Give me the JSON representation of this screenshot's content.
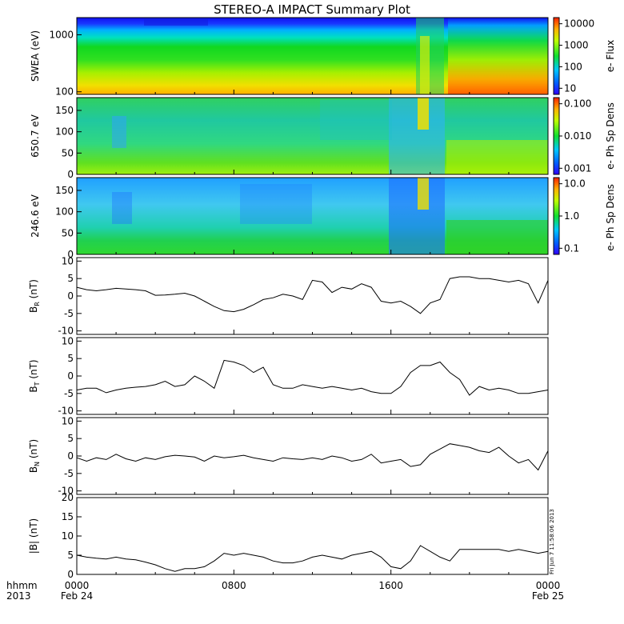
{
  "title": "STEREO-A IMPACT Summary Plot",
  "time_axis": {
    "corner_top": "hhmm",
    "corner_bottom": "2013",
    "ticks": [
      {
        "hour": 0,
        "top": "0000",
        "bottom": "Feb 24"
      },
      {
        "hour": 8,
        "top": "0800",
        "bottom": ""
      },
      {
        "hour": 16,
        "top": "1600",
        "bottom": ""
      },
      {
        "hour": 24,
        "top": "0000",
        "bottom": "Feb 25"
      }
    ]
  },
  "timestamp": "Fri Jun  7 11:58:06 2013",
  "spectrograms": [
    {
      "ylabel": "SWEA (eV)",
      "yscale": "log",
      "ylim": [
        90,
        2000
      ],
      "yticks": [
        "100",
        "1000"
      ],
      "colorbar_label": "e- Flux",
      "colorbar_ticks": [
        "10",
        "100",
        "1000",
        "10000"
      ],
      "colorbar_top_color": "#ff2000",
      "colorbar_bottom_color": "#3000ff"
    },
    {
      "ylabel": "650.7 eV",
      "yscale": "linear",
      "ylim": [
        0,
        180
      ],
      "yticks": [
        "0",
        "50",
        "100",
        "150"
      ],
      "colorbar_label": "e- Ph Sp Dens",
      "colorbar_ticks": [
        "0.001",
        "0.010",
        "0.100"
      ]
    },
    {
      "ylabel": "246.6 eV",
      "yscale": "linear",
      "ylim": [
        0,
        180
      ],
      "yticks": [
        "0",
        "50",
        "100",
        "150"
      ],
      "colorbar_label": "e- Ph Sp Dens",
      "colorbar_ticks": [
        "0.1",
        "1.0",
        "10.0"
      ]
    }
  ],
  "chart_data": [
    {
      "type": "line",
      "ylabel": "B_R (nT)",
      "ylim": [
        -11,
        11
      ],
      "yticks": [
        "-10",
        "-5",
        "0",
        "5",
        "10"
      ],
      "x_unit": "hours since 2013-02-24 00:00",
      "x": [
        0,
        0.5,
        1,
        1.5,
        2,
        2.5,
        3,
        3.5,
        4,
        4.5,
        5,
        5.5,
        6,
        6.5,
        7,
        7.5,
        8,
        8.5,
        9,
        9.5,
        10,
        10.5,
        11,
        11.5,
        12,
        12.5,
        13,
        13.5,
        14,
        14.5,
        15,
        15.5,
        16,
        16.5,
        17,
        17.5,
        18,
        18.5,
        19,
        19.5,
        20,
        20.5,
        21,
        21.5,
        22,
        22.5,
        23,
        23.5,
        24
      ],
      "y": [
        2.5,
        1.8,
        1.5,
        1.8,
        2.2,
        2.0,
        1.8,
        1.5,
        0.2,
        0.3,
        0.5,
        0.8,
        0.0,
        -1.5,
        -3.0,
        -4.2,
        -4.5,
        -3.8,
        -2.5,
        -1.0,
        -0.5,
        0.5,
        0.0,
        -1.0,
        4.5,
        4.0,
        1.0,
        2.5,
        2.0,
        3.5,
        2.5,
        -1.5,
        -2.0,
        -1.5,
        -3.0,
        -5.0,
        -2.0,
        -1.0,
        5.0,
        5.5,
        5.5,
        5.0,
        5.0,
        4.5,
        4.0,
        4.5,
        3.5,
        -2.0,
        4.5
      ]
    },
    {
      "type": "line",
      "ylabel": "B_T (nT)",
      "ylim": [
        -11,
        11
      ],
      "yticks": [
        "-10",
        "-5",
        "0",
        "5",
        "10"
      ],
      "x_unit": "hours since 2013-02-24 00:00",
      "x": [
        0,
        0.5,
        1,
        1.5,
        2,
        2.5,
        3,
        3.5,
        4,
        4.5,
        5,
        5.5,
        6,
        6.5,
        7,
        7.5,
        8,
        8.5,
        9,
        9.5,
        10,
        10.5,
        11,
        11.5,
        12,
        12.5,
        13,
        13.5,
        14,
        14.5,
        15,
        15.5,
        16,
        16.5,
        17,
        17.5,
        18,
        18.5,
        19,
        19.5,
        20,
        20.5,
        21,
        21.5,
        22,
        22.5,
        23,
        23.5,
        24
      ],
      "y": [
        -4.0,
        -3.5,
        -3.5,
        -4.8,
        -4.0,
        -3.5,
        -3.2,
        -3.0,
        -2.5,
        -1.5,
        -3.0,
        -2.5,
        0.0,
        -1.5,
        -3.5,
        4.5,
        4.0,
        3.0,
        1.0,
        2.5,
        -2.5,
        -3.5,
        -3.5,
        -2.5,
        -3.0,
        -3.5,
        -3.0,
        -3.5,
        -4.0,
        -3.5,
        -4.5,
        -5.0,
        -5.0,
        -3.0,
        1.0,
        3.0,
        3.0,
        4.0,
        1.0,
        -1.0,
        -5.5,
        -3.0,
        -4.0,
        -3.5,
        -4.0,
        -5.0,
        -5.0,
        -4.5,
        -4.0
      ]
    },
    {
      "type": "line",
      "ylabel": "B_N (nT)",
      "ylim": [
        -11,
        11
      ],
      "yticks": [
        "-10",
        "-5",
        "0",
        "5",
        "10"
      ],
      "x_unit": "hours since 2013-02-24 00:00",
      "x": [
        0,
        0.5,
        1,
        1.5,
        2,
        2.5,
        3,
        3.5,
        4,
        4.5,
        5,
        5.5,
        6,
        6.5,
        7,
        7.5,
        8,
        8.5,
        9,
        9.5,
        10,
        10.5,
        11,
        11.5,
        12,
        12.5,
        13,
        13.5,
        14,
        14.5,
        15,
        15.5,
        16,
        16.5,
        17,
        17.5,
        18,
        18.5,
        19,
        19.5,
        20,
        20.5,
        21,
        21.5,
        22,
        22.5,
        23,
        23.5,
        24
      ],
      "y": [
        -0.5,
        -1.5,
        -0.5,
        -1.0,
        0.5,
        -0.8,
        -1.5,
        -0.5,
        -1.0,
        -0.2,
        0.2,
        0.0,
        -0.3,
        -1.5,
        0.0,
        -0.5,
        -0.2,
        0.2,
        -0.5,
        -1.0,
        -1.5,
        -0.5,
        -0.8,
        -1.0,
        -0.5,
        -1.0,
        0.0,
        -0.5,
        -1.5,
        -1.0,
        0.5,
        -2.0,
        -1.5,
        -1.0,
        -3.0,
        -2.5,
        0.5,
        2.0,
        3.5,
        3.0,
        2.5,
        1.5,
        1.0,
        2.5,
        0.0,
        -2.0,
        -1.0,
        -4.0,
        1.5
      ]
    },
    {
      "type": "line",
      "ylabel": "|B| (nT)",
      "ylim": [
        0,
        20
      ],
      "yticks": [
        "0",
        "5",
        "10",
        "15",
        "20"
      ],
      "x_unit": "hours since 2013-02-24 00:00",
      "x": [
        0,
        0.5,
        1,
        1.5,
        2,
        2.5,
        3,
        3.5,
        4,
        4.5,
        5,
        5.5,
        6,
        6.5,
        7,
        7.5,
        8,
        8.5,
        9,
        9.5,
        10,
        10.5,
        11,
        11.5,
        12,
        12.5,
        13,
        13.5,
        14,
        14.5,
        15,
        15.5,
        16,
        16.5,
        17,
        17.5,
        18,
        18.5,
        19,
        19.5,
        20,
        20.5,
        21,
        21.5,
        22,
        22.5,
        23,
        23.5,
        24
      ],
      "y": [
        5.0,
        4.5,
        4.2,
        4.0,
        4.5,
        4.0,
        3.8,
        3.2,
        2.5,
        1.5,
        0.8,
        1.5,
        1.5,
        2.0,
        3.5,
        5.5,
        5.0,
        5.5,
        5.0,
        4.5,
        3.5,
        3.0,
        3.0,
        3.5,
        4.5,
        5.0,
        4.5,
        4.0,
        5.0,
        5.5,
        6.0,
        4.5,
        2.0,
        1.5,
        3.5,
        7.5,
        6.0,
        4.5,
        3.5,
        6.5,
        6.5,
        6.5,
        6.5,
        6.5,
        6.0,
        6.5,
        6.0,
        5.5,
        6.0
      ]
    }
  ]
}
